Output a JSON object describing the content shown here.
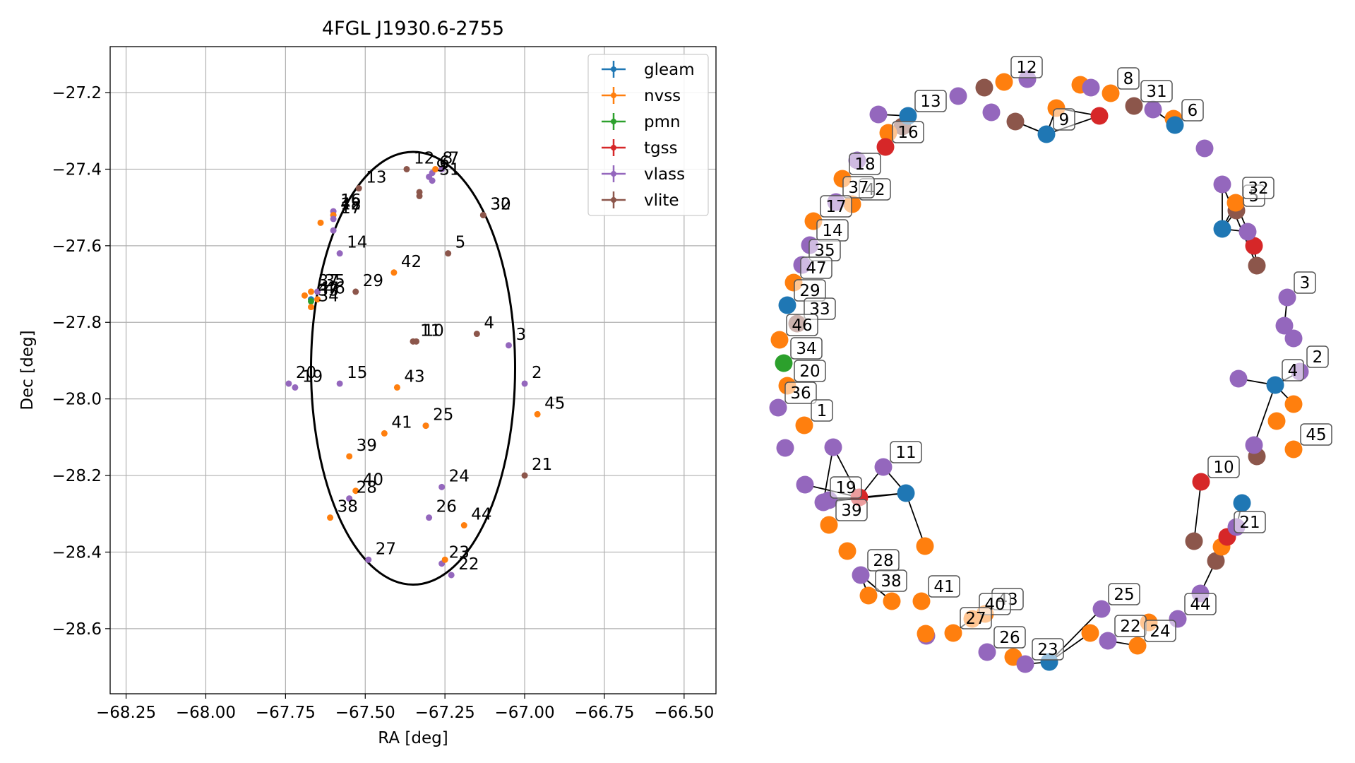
{
  "colors": {
    "gleam": "#1f77b4",
    "nvss": "#ff7f0e",
    "pmn": "#2ca02c",
    "tgss": "#d62728",
    "vlass": "#9467bd",
    "vlite": "#8c564b"
  },
  "chart_data": [
    {
      "type": "scatter",
      "title": "4FGL J1930.6-2755",
      "xlabel": "RA [deg]",
      "ylabel": "Dec [deg]",
      "xlim": [
        -68.3,
        -66.4
      ],
      "ylim": [
        -28.77,
        -27.08
      ],
      "x_ticks": [
        -68.25,
        -68.0,
        -67.75,
        -67.5,
        -67.25,
        -67.0,
        -66.75,
        -66.5
      ],
      "x_tick_labels": [
        "−68.25",
        "−68.00",
        "−67.75",
        "−67.50",
        "−67.25",
        "−67.00",
        "−66.75",
        "−66.50"
      ],
      "y_ticks": [
        -27.2,
        -27.4,
        -27.6,
        -27.8,
        -28.0,
        -28.2,
        -28.4,
        -28.6
      ],
      "y_tick_labels": [
        "−27.2",
        "−27.4",
        "−27.6",
        "−27.8",
        "−28.0",
        "−28.2",
        "−28.4",
        "−28.6"
      ],
      "grid": true,
      "legend_position": "top-right",
      "legend": [
        "gleam",
        "nvss",
        "pmn",
        "tgss",
        "vlass",
        "vlite"
      ],
      "ellipse": {
        "center": [
          -67.35,
          -27.92
        ],
        "ra_semi_axis": 0.32,
        "dec_semi_axis": 0.565
      },
      "points": [
        {
          "x": -67.26,
          "y": -27.4,
          "s": "vlass",
          "label": "7"
        },
        {
          "x": -67.29,
          "y": -27.41,
          "s": "vlass",
          "label": "6"
        },
        {
          "x": -67.28,
          "y": -27.4,
          "s": "nvss",
          "label": "8"
        },
        {
          "x": -67.37,
          "y": -27.4,
          "s": "vlite",
          "label": "12"
        },
        {
          "x": -67.3,
          "y": -27.42,
          "s": "vlass",
          "label": "9"
        },
        {
          "x": -67.29,
          "y": -27.43,
          "s": "vlass",
          "label": "31"
        },
        {
          "x": -67.33,
          "y": -27.46,
          "s": "vlite",
          "label": ""
        },
        {
          "x": -67.33,
          "y": -27.47,
          "s": "vlite",
          "label": ""
        },
        {
          "x": -67.52,
          "y": -27.45,
          "s": "vlite",
          "label": "13"
        },
        {
          "x": -67.13,
          "y": -27.52,
          "s": "vlite",
          "label": "30"
        },
        {
          "x": -67.13,
          "y": -27.52,
          "s": "vlite",
          "label": "32"
        },
        {
          "x": -67.6,
          "y": -27.51,
          "s": "vlass",
          "label": "16"
        },
        {
          "x": -67.6,
          "y": -27.52,
          "s": "vlass",
          "label": "18"
        },
        {
          "x": -67.6,
          "y": -27.52,
          "s": "nvss",
          "label": "42"
        },
        {
          "x": -67.64,
          "y": -27.54,
          "s": "nvss",
          "label": ""
        },
        {
          "x": -67.6,
          "y": -27.53,
          "s": "vlass",
          "label": "17"
        },
        {
          "x": -67.6,
          "y": -27.56,
          "s": "vlass",
          "label": ""
        },
        {
          "x": -67.58,
          "y": -27.62,
          "s": "vlass",
          "label": "14"
        },
        {
          "x": -67.24,
          "y": -27.62,
          "s": "vlite",
          "label": "5"
        },
        {
          "x": -67.41,
          "y": -27.67,
          "s": "nvss",
          "label": "42"
        },
        {
          "x": -67.53,
          "y": -27.72,
          "s": "vlite",
          "label": "29"
        },
        {
          "x": -67.67,
          "y": -27.72,
          "s": "nvss",
          "label": "37"
        },
        {
          "x": -67.65,
          "y": -27.72,
          "s": "vlass",
          "label": "35"
        },
        {
          "x": -67.69,
          "y": -27.73,
          "s": "nvss",
          "label": ""
        },
        {
          "x": -67.67,
          "y": -27.74,
          "s": "gleam",
          "label": "47"
        },
        {
          "x": -67.65,
          "y": -27.74,
          "s": "nvss",
          "label": "46"
        },
        {
          "x": -67.67,
          "y": -27.745,
          "s": "pmn",
          "label": "33"
        },
        {
          "x": -67.67,
          "y": -27.76,
          "s": "nvss",
          "label": "34"
        },
        {
          "x": -67.35,
          "y": -27.85,
          "s": "vlite",
          "label": "11"
        },
        {
          "x": -67.34,
          "y": -27.85,
          "s": "vlite",
          "label": "10"
        },
        {
          "x": -67.15,
          "y": -27.83,
          "s": "vlite",
          "label": "4"
        },
        {
          "x": -67.05,
          "y": -27.86,
          "s": "vlass",
          "label": "3"
        },
        {
          "x": -67.74,
          "y": -27.96,
          "s": "vlass",
          "label": "20"
        },
        {
          "x": -67.72,
          "y": -27.97,
          "s": "vlass",
          "label": "19"
        },
        {
          "x": -67.58,
          "y": -27.96,
          "s": "vlass",
          "label": "15"
        },
        {
          "x": -67.4,
          "y": -27.97,
          "s": "nvss",
          "label": "43"
        },
        {
          "x": -67.0,
          "y": -27.96,
          "s": "vlass",
          "label": "2"
        },
        {
          "x": -66.96,
          "y": -28.04,
          "s": "nvss",
          "label": "45"
        },
        {
          "x": -67.31,
          "y": -28.07,
          "s": "vlass",
          "label": "25"
        },
        {
          "x": -67.31,
          "y": -28.07,
          "s": "nvss",
          "label": ""
        },
        {
          "x": -67.44,
          "y": -28.09,
          "s": "nvss",
          "label": "41"
        },
        {
          "x": -67.55,
          "y": -28.15,
          "s": "nvss",
          "label": "39"
        },
        {
          "x": -67.0,
          "y": -28.2,
          "s": "vlite",
          "label": "21"
        },
        {
          "x": -67.26,
          "y": -28.23,
          "s": "vlass",
          "label": "24"
        },
        {
          "x": -67.53,
          "y": -28.24,
          "s": "nvss",
          "label": "40"
        },
        {
          "x": -67.55,
          "y": -28.26,
          "s": "vlass",
          "label": "28"
        },
        {
          "x": -67.3,
          "y": -28.31,
          "s": "vlass",
          "label": "26"
        },
        {
          "x": -67.61,
          "y": -28.31,
          "s": "nvss",
          "label": "38"
        },
        {
          "x": -67.19,
          "y": -28.33,
          "s": "nvss",
          "label": "44"
        },
        {
          "x": -67.49,
          "y": -28.42,
          "s": "vlass",
          "label": "27"
        },
        {
          "x": -67.26,
          "y": -28.43,
          "s": "vlass",
          "label": "23"
        },
        {
          "x": -67.25,
          "y": -28.42,
          "s": "nvss",
          "label": ""
        },
        {
          "x": -67.23,
          "y": -28.46,
          "s": "vlass",
          "label": "22"
        }
      ]
    },
    {
      "type": "network",
      "title": "",
      "labels": [
        "1",
        "2",
        "3",
        "4",
        "5",
        "6",
        "8",
        "9",
        "10",
        "11",
        "12",
        "13",
        "14",
        "16",
        "17",
        "18",
        "19",
        "20",
        "21",
        "22",
        "23",
        "24",
        "25",
        "26",
        "27",
        "28",
        "29",
        "31",
        "32",
        "33",
        "34",
        "35",
        "36",
        "37",
        "38",
        "39",
        "40",
        "41",
        "42",
        "43",
        "44",
        "45",
        "46",
        "47"
      ],
      "nodes": [
        {
          "id": "n1",
          "s": "vlass",
          "label": ""
        },
        {
          "id": "n2",
          "s": "vlite",
          "label": ""
        },
        {
          "id": "n3",
          "s": "nvss",
          "label": "12"
        },
        {
          "id": "n4",
          "s": "vlass",
          "label": ""
        },
        {
          "id": "n5",
          "s": "vlass",
          "label": ""
        },
        {
          "id": "n6",
          "s": "vlite",
          "label": ""
        },
        {
          "id": "n7",
          "s": "gleam",
          "label": "9"
        },
        {
          "id": "n8",
          "s": "nvss",
          "label": ""
        },
        {
          "id": "n9",
          "s": "nvss",
          "label": ""
        },
        {
          "id": "n10",
          "s": "vlass",
          "label": ""
        },
        {
          "id": "n11",
          "s": "tgss",
          "label": ""
        },
        {
          "id": "n12",
          "s": "nvss",
          "label": "8"
        },
        {
          "id": "n13",
          "s": "vlite",
          "label": "31"
        },
        {
          "id": "n14",
          "s": "vlass",
          "label": ""
        },
        {
          "id": "n15",
          "s": "nvss",
          "label": ""
        },
        {
          "id": "n16",
          "s": "gleam",
          "label": "6"
        },
        {
          "id": "n17",
          "s": "vlass",
          "label": ""
        },
        {
          "id": "n18",
          "s": "vlite",
          "label": ""
        },
        {
          "id": "n19",
          "s": "nvss",
          "label": ""
        },
        {
          "id": "n20",
          "s": "vlass",
          "label": ""
        },
        {
          "id": "n21",
          "s": "gleam",
          "label": "13"
        },
        {
          "id": "n22",
          "s": "tgss",
          "label": "16"
        },
        {
          "id": "n23",
          "s": "vlass",
          "label": ""
        },
        {
          "id": "n24",
          "s": "nvss",
          "label": "18"
        },
        {
          "id": "n25",
          "s": "nvss",
          "label": "42"
        },
        {
          "id": "n26",
          "s": "vlass",
          "label": "37"
        },
        {
          "id": "n27",
          "s": "nvss",
          "label": "17"
        },
        {
          "id": "n28",
          "s": "vlass",
          "label": "14"
        },
        {
          "id": "n29",
          "s": "vlass",
          "label": "35"
        },
        {
          "id": "n30",
          "s": "nvss",
          "label": "47"
        },
        {
          "id": "n31",
          "s": "gleam",
          "label": "29"
        },
        {
          "id": "n32",
          "s": "vlite",
          "label": "33"
        },
        {
          "id": "n33",
          "s": "nvss",
          "label": "46"
        },
        {
          "id": "n34",
          "s": "pmn",
          "label": "34"
        },
        {
          "id": "n35",
          "s": "nvss",
          "label": "20"
        },
        {
          "id": "n36",
          "s": "vlass",
          "label": "36"
        },
        {
          "id": "n37",
          "s": "nvss",
          "label": "1"
        },
        {
          "id": "n38",
          "s": "vlass",
          "label": ""
        },
        {
          "id": "n39",
          "s": "vlass",
          "label": ""
        },
        {
          "id": "n40",
          "s": "vlass",
          "label": ""
        },
        {
          "id": "n41",
          "s": "vlass",
          "label": "19"
        },
        {
          "id": "n42",
          "s": "tgss",
          "label": ""
        },
        {
          "id": "n43",
          "s": "vlass",
          "label": "11"
        },
        {
          "id": "n44",
          "s": "gleam",
          "label": ""
        },
        {
          "id": "n45",
          "s": "nvss",
          "label": ""
        },
        {
          "id": "n46",
          "s": "vlass",
          "label": ""
        },
        {
          "id": "n47",
          "s": "nvss",
          "label": "39"
        },
        {
          "id": "n48",
          "s": "nvss",
          "label": ""
        },
        {
          "id": "n49",
          "s": "vlass",
          "label": "28"
        },
        {
          "id": "n50",
          "s": "nvss",
          "label": "38"
        },
        {
          "id": "n51",
          "s": "nvss",
          "label": ""
        },
        {
          "id": "n52",
          "s": "nvss",
          "label": "41"
        },
        {
          "id": "n53",
          "s": "nvss",
          "label": "43"
        },
        {
          "id": "n54",
          "s": "nvss",
          "label": "40"
        },
        {
          "id": "n55",
          "s": "nvss",
          "label": "27"
        },
        {
          "id": "n56",
          "s": "vlass",
          "label": ""
        },
        {
          "id": "n57",
          "s": "nvss",
          "label": ""
        },
        {
          "id": "n58",
          "s": "vlass",
          "label": "26"
        },
        {
          "id": "n59",
          "s": "nvss",
          "label": ""
        },
        {
          "id": "n60",
          "s": "vlass",
          "label": "23"
        },
        {
          "id": "n61",
          "s": "gleam",
          "label": ""
        },
        {
          "id": "n62",
          "s": "vlass",
          "label": "25"
        },
        {
          "id": "n63",
          "s": "nvss",
          "label": ""
        },
        {
          "id": "n64",
          "s": "vlass",
          "label": "22"
        },
        {
          "id": "n65",
          "s": "nvss",
          "label": "24"
        },
        {
          "id": "n66",
          "s": "nvss",
          "label": ""
        },
        {
          "id": "n67",
          "s": "vlass",
          "label": "44"
        },
        {
          "id": "n68",
          "s": "vlass",
          "label": ""
        },
        {
          "id": "n69",
          "s": "vlite",
          "label": ""
        },
        {
          "id": "n70",
          "s": "nvss",
          "label": ""
        },
        {
          "id": "n71",
          "s": "tgss",
          "label": "21"
        },
        {
          "id": "n72",
          "s": "vlass",
          "label": ""
        },
        {
          "id": "n73",
          "s": "gleam",
          "label": ""
        },
        {
          "id": "n74",
          "s": "vlite",
          "label": ""
        },
        {
          "id": "n75",
          "s": "tgss",
          "label": "10"
        },
        {
          "id": "n76",
          "s": "vlite",
          "label": ""
        },
        {
          "id": "n77",
          "s": "vlass",
          "label": ""
        },
        {
          "id": "n78",
          "s": "nvss",
          "label": ""
        },
        {
          "id": "n79",
          "s": "nvss",
          "label": "45"
        },
        {
          "id": "n80",
          "s": "vlass",
          "label": ""
        },
        {
          "id": "n81",
          "s": "gleam",
          "label": "4"
        },
        {
          "id": "n82",
          "s": "vlass",
          "label": "2"
        },
        {
          "id": "n83",
          "s": "nvss",
          "label": ""
        },
        {
          "id": "n84",
          "s": "vlass",
          "label": ""
        },
        {
          "id": "n85",
          "s": "vlass",
          "label": "3"
        },
        {
          "id": "n86",
          "s": "vlite",
          "label": ""
        },
        {
          "id": "n87",
          "s": "tgss",
          "label": ""
        },
        {
          "id": "n88",
          "s": "vlass",
          "label": ""
        },
        {
          "id": "n89",
          "s": "gleam",
          "label": ""
        },
        {
          "id": "n90",
          "s": "vlite",
          "label": "5"
        },
        {
          "id": "n91",
          "s": "nvss",
          "label": "32"
        },
        {
          "id": "n92",
          "s": "vlass",
          "label": ""
        },
        {
          "id": "n93",
          "s": "vlass",
          "label": ""
        }
      ],
      "edges": [
        [
          "n6",
          "n7"
        ],
        [
          "n7",
          "n8"
        ],
        [
          "n7",
          "n11"
        ],
        [
          "n8",
          "n11"
        ],
        [
          "n16",
          "n15"
        ],
        [
          "n16",
          "n14"
        ],
        [
          "n21",
          "n19"
        ],
        [
          "n21",
          "n20"
        ],
        [
          "n90",
          "n89"
        ],
        [
          "n89",
          "n88"
        ],
        [
          "n89",
          "n91"
        ],
        [
          "n91",
          "n87"
        ],
        [
          "n87",
          "n86"
        ],
        [
          "n89",
          "n92"
        ],
        [
          "n92",
          "n86"
        ],
        [
          "n85",
          "n84"
        ],
        [
          "n81",
          "n80"
        ],
        [
          "n81",
          "n82"
        ],
        [
          "n81",
          "n83"
        ],
        [
          "n81",
          "n77"
        ],
        [
          "n77",
          "n76"
        ],
        [
          "n75",
          "n74"
        ],
        [
          "n73",
          "n72"
        ],
        [
          "n72",
          "n71"
        ],
        [
          "n71",
          "n70"
        ],
        [
          "n70",
          "n69"
        ],
        [
          "n69",
          "n68"
        ],
        [
          "n39",
          "n42"
        ],
        [
          "n39",
          "n41"
        ],
        [
          "n42",
          "n43"
        ],
        [
          "n42",
          "n44"
        ],
        [
          "n41",
          "n44"
        ],
        [
          "n43",
          "n44"
        ],
        [
          "n44",
          "n45"
        ],
        [
          "n42",
          "n40"
        ],
        [
          "n49",
          "n50"
        ],
        [
          "n49",
          "n51"
        ],
        [
          "n54",
          "n55"
        ],
        [
          "n60",
          "n61"
        ],
        [
          "n61",
          "n62"
        ],
        [
          "n61",
          "n63"
        ],
        [
          "n64",
          "n65"
        ]
      ]
    }
  ]
}
